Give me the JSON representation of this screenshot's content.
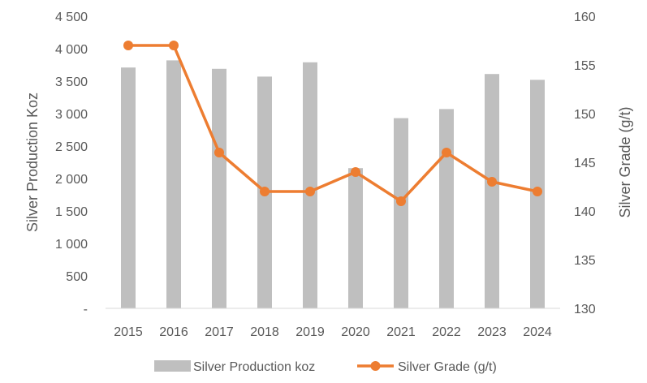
{
  "chart_data": {
    "type": "bar",
    "categories": [
      "2015",
      "2016",
      "2017",
      "2018",
      "2019",
      "2020",
      "2021",
      "2022",
      "2023",
      "2024"
    ],
    "series": [
      {
        "name": "Silver Production koz",
        "type": "bar",
        "axis": "left",
        "color": "#BFBFBF",
        "values": [
          3710,
          3820,
          3690,
          3570,
          3790,
          2160,
          2930,
          3070,
          3610,
          3520
        ]
      },
      {
        "name": "Silver Grade (g/t)",
        "type": "line",
        "axis": "right",
        "color": "#ED7D31",
        "values": [
          157,
          157,
          146,
          142,
          142,
          144,
          141,
          146,
          143,
          142
        ]
      }
    ],
    "ylabel": "Silver Production Koz",
    "y2label": "Silver Grade (g/t)",
    "ylim": [
      0,
      4500
    ],
    "y2lim": [
      130,
      160
    ],
    "yticks": [
      {
        "value": 0,
        "label": "-"
      },
      {
        "value": 500,
        "label": "500"
      },
      {
        "value": 1000,
        "label": "1 000"
      },
      {
        "value": 1500,
        "label": "1 500"
      },
      {
        "value": 2000,
        "label": "2 000"
      },
      {
        "value": 2500,
        "label": "2 500"
      },
      {
        "value": 3000,
        "label": "3 000"
      },
      {
        "value": 3500,
        "label": "3 500"
      },
      {
        "value": 4000,
        "label": "4 000"
      },
      {
        "value": 4500,
        "label": "4 500"
      }
    ],
    "y2ticks": [
      {
        "value": 130,
        "label": "130"
      },
      {
        "value": 135,
        "label": "135"
      },
      {
        "value": 140,
        "label": "140"
      },
      {
        "value": 145,
        "label": "145"
      },
      {
        "value": 150,
        "label": "150"
      },
      {
        "value": 155,
        "label": "155"
      },
      {
        "value": 160,
        "label": "160"
      }
    ],
    "grid": false,
    "legend_position": "bottom"
  }
}
